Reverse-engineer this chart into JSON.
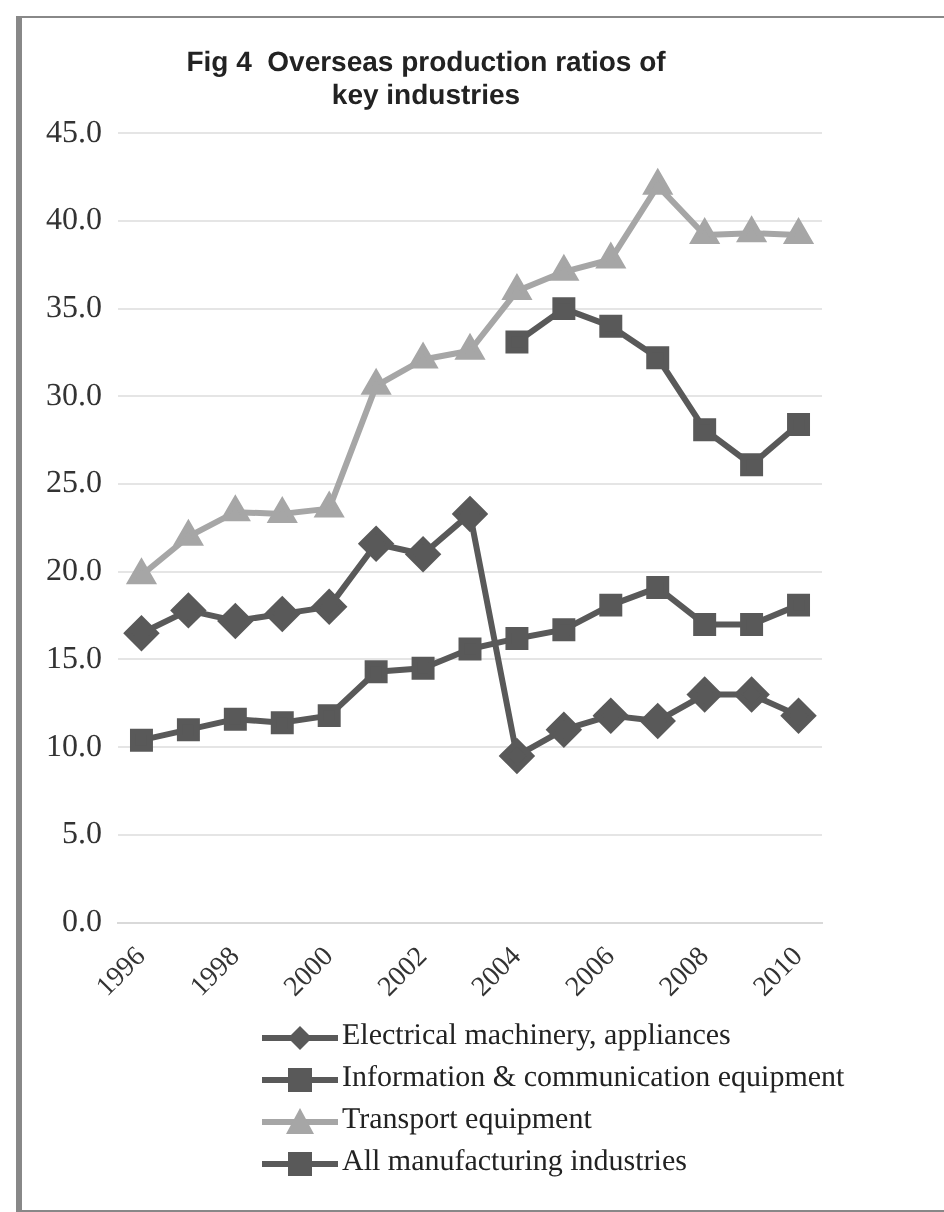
{
  "chart_data": {
    "type": "line",
    "title": [
      "Fig 4  Overseas production ratios of",
      "key industries"
    ],
    "categories": [
      "1996",
      null,
      "1998",
      null,
      "2000",
      null,
      "2002",
      null,
      "2004",
      null,
      "2006",
      null,
      "2008",
      null,
      "2010"
    ],
    "series": [
      {
        "name": "Electrical machinery, appliances",
        "color": "#595959",
        "marker": "diamond",
        "values": [
          16.5,
          17.8,
          17.2,
          17.6,
          18.0,
          21.6,
          21.0,
          23.3,
          9.5,
          11.0,
          11.8,
          11.5,
          13.0,
          13.0,
          11.8
        ]
      },
      {
        "name": "Information & communication equipment",
        "color": "#595959",
        "marker": "square",
        "values": [
          null,
          null,
          null,
          null,
          null,
          null,
          null,
          null,
          33.1,
          35.0,
          34.0,
          32.2,
          28.1,
          26.1,
          28.4
        ]
      },
      {
        "name": "Transport equipment",
        "color": "#a6a6a6",
        "marker": "triangle",
        "values": [
          19.8,
          22.0,
          23.4,
          23.3,
          23.6,
          30.6,
          32.1,
          32.6,
          36.0,
          37.1,
          37.8,
          42.0,
          39.2,
          39.3,
          39.2
        ]
      },
      {
        "name": "All manufacturing industries",
        "color": "#595959",
        "marker": "square",
        "values": [
          10.4,
          11.0,
          11.6,
          11.4,
          11.8,
          14.3,
          14.5,
          15.6,
          16.2,
          16.7,
          18.1,
          19.1,
          17.0,
          17.0,
          18.1
        ]
      }
    ],
    "ylim": [
      0,
      45
    ],
    "yticks": [
      {
        "value": 0,
        "label": "0.0"
      },
      {
        "value": 5,
        "label": "5.0"
      },
      {
        "value": 10,
        "label": "10.0"
      },
      {
        "value": 15,
        "label": "15.0"
      },
      {
        "value": 20,
        "label": "20.0"
      },
      {
        "value": 25,
        "label": "25.0"
      },
      {
        "value": 30,
        "label": "30.0"
      },
      {
        "value": 35,
        "label": "35.0"
      },
      {
        "value": 40,
        "label": "40.0"
      },
      {
        "value": 45,
        "label": "45.0"
      }
    ],
    "grid": "y",
    "legend": "bottom",
    "line_style": "solid"
  }
}
